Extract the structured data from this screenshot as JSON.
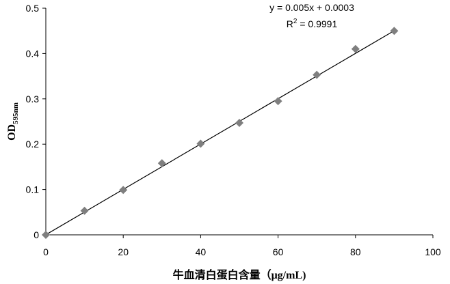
{
  "chart_data": {
    "type": "scatter",
    "x_label": "牛血清白蛋白含量（μg/mL)",
    "y_label": "OD",
    "y_label_sub": "595nm",
    "x": [
      0,
      10,
      20,
      30,
      40,
      50,
      60,
      70,
      80,
      90
    ],
    "series": [
      {
        "color": "#7f7f7f",
        "values": [
          0,
          0.053,
          0.099,
          0.158,
          0.201,
          0.247,
          0.295,
          0.353,
          0.41,
          0.45
        ]
      }
    ],
    "trendline": {
      "slope": 0.005,
      "intercept": 0.0003,
      "color": "#000000",
      "equation": "y = 0.005x + 0.0003",
      "r2_prefix": "R",
      "r2_sup": "2",
      "r2_suffix": " = 0.9991"
    },
    "xlim": [
      0,
      100
    ],
    "xticks": [
      0,
      20,
      40,
      60,
      80,
      100
    ],
    "ylim": [
      0,
      0.5
    ],
    "yticks": [
      0,
      0.1,
      0.2,
      0.3,
      0.4,
      0.5
    ],
    "grid": false
  }
}
